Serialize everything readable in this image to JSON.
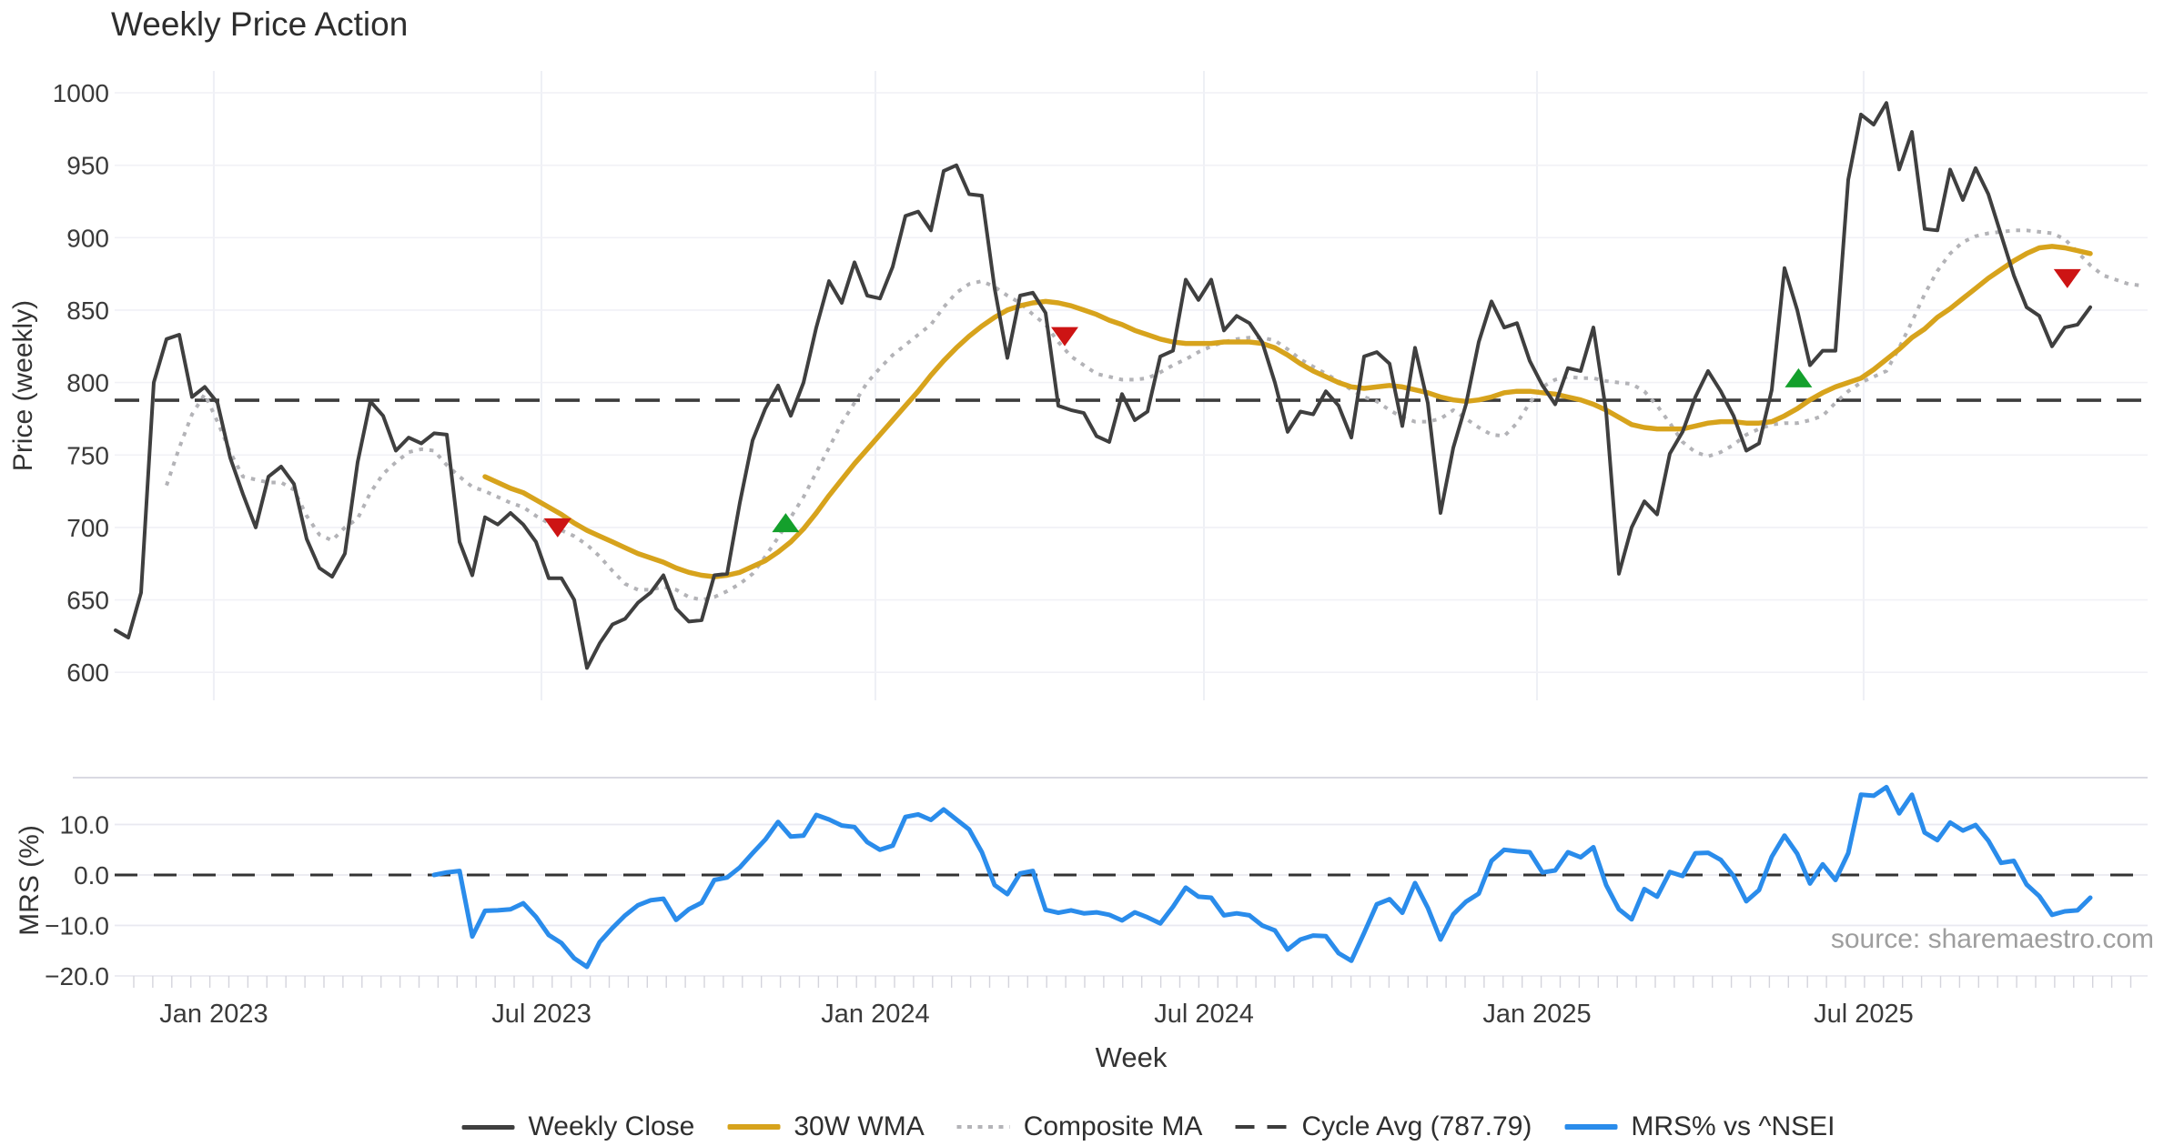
{
  "source": "source: sharemaestro.com",
  "legend": {
    "items": [
      {
        "label": "Weekly Close",
        "color": "#3f3f3f",
        "style": "solid"
      },
      {
        "label": "30W WMA",
        "color": "#d7a31c",
        "style": "solid"
      },
      {
        "label": "Composite MA",
        "color": "#b3b3b7",
        "style": "dotted"
      },
      {
        "label": "Cycle Avg (787.79)",
        "color": "#3c3c3c",
        "style": "dashed"
      },
      {
        "label": "MRS% vs ^NSEI",
        "color": "#2a8ceb",
        "style": "solid"
      }
    ]
  },
  "chart_data": {
    "type": "line",
    "title": "Weekly Price Action",
    "x_axis": {
      "label": "Week",
      "tick_labels": [
        "Jan 2023",
        "Jul 2023",
        "Jan 2024",
        "Jul 2024",
        "Jan 2025",
        "Jul 2025"
      ],
      "tick_week_positions": [
        7.71,
        33.43,
        59.64,
        85.43,
        111.57,
        137.21
      ],
      "total_weeks": 156
    },
    "panels": [
      {
        "name": "price",
        "ylabel": "Price (weekly)",
        "yticks": [
          600,
          650,
          700,
          750,
          800,
          850,
          900,
          950,
          1000
        ],
        "ytick_labels": [
          "600",
          "650",
          "700",
          "750",
          "800",
          "850",
          "900",
          "950",
          "1000"
        ],
        "ylim": [
          581,
          1015
        ],
        "cycle_avg": 787.79,
        "series": [
          {
            "name": "Weekly Close",
            "color": "#3f3f3f",
            "style": "solid",
            "width": 4,
            "start_index": 0,
            "values": [
              629,
              624,
              655,
              800,
              830,
              833,
              790,
              797,
              786,
              748,
              723,
              700,
              735,
              742,
              730,
              692,
              672,
              666,
              682,
              745,
              787,
              777,
              753,
              762,
              758,
              765,
              764,
              690,
              667,
              707,
              702,
              710,
              702,
              690,
              665,
              665,
              650,
              603,
              620,
              633,
              637,
              648,
              655,
              667,
              644,
              635,
              636,
              667,
              668,
              717,
              760,
              782,
              798,
              777,
              800,
              838,
              870,
              855,
              883,
              860,
              858,
              880,
              915,
              918,
              905,
              946,
              950,
              930,
              929,
              865,
              817,
              860,
              862,
              848,
              784,
              781,
              779,
              763,
              759,
              792,
              774,
              780,
              818,
              822,
              871,
              857,
              871,
              836,
              846,
              841,
              828,
              800,
              766,
              780,
              778,
              794,
              784,
              762,
              818,
              821,
              813,
              770,
              824,
              786,
              710,
              755,
              785,
              828,
              856,
              838,
              841,
              815,
              798,
              785,
              810,
              808,
              838,
              780,
              668,
              700,
              718,
              709,
              751,
              766,
              790,
              808,
              794,
              777,
              753,
              758,
              795,
              879,
              850,
              812,
              822,
              822,
              940,
              985,
              978,
              993,
              947,
              973,
              906,
              905,
              947,
              926,
              948,
              930,
              902,
              874,
              852,
              846,
              825,
              838,
              840,
              852
            ]
          },
          {
            "name": "30W WMA",
            "color": "#d7a31c",
            "style": "solid",
            "width": 5.5,
            "start_index": 29,
            "values": [
              735,
              731,
              727,
              724,
              719,
              714,
              709,
              703,
              698,
              694,
              690,
              686,
              682,
              679,
              676,
              672,
              669,
              667,
              666,
              667,
              669,
              673,
              677,
              683,
              690,
              699,
              710,
              722,
              733,
              744,
              754,
              764,
              774,
              784,
              794,
              805,
              815,
              824,
              832,
              839,
              845,
              850,
              853,
              855,
              856,
              855,
              853,
              850,
              847,
              843,
              840,
              836,
              833,
              830,
              828,
              827,
              827,
              827,
              828,
              828,
              828,
              827,
              824,
              819,
              813,
              808,
              804,
              800,
              797,
              796,
              797,
              798,
              797,
              795,
              793,
              790,
              788,
              787,
              788,
              790,
              793,
              794,
              794,
              793,
              792,
              790,
              788,
              785,
              781,
              776,
              771,
              769,
              768,
              768,
              768,
              770,
              772,
              773,
              773,
              772,
              772,
              773,
              777,
              782,
              788,
              793,
              797,
              800,
              803,
              809,
              816,
              823,
              831,
              837,
              845,
              851,
              858,
              865,
              872,
              878,
              884,
              889,
              893,
              894,
              893,
              891,
              889
            ]
          },
          {
            "name": "Composite MA",
            "color": "#b3b3b7",
            "style": "dotted",
            "width": 4,
            "start_index": 4,
            "values": [
              729,
              755,
              778,
              792,
              773,
              752,
              735,
              733,
              731,
              731,
              726,
              708,
              695,
              691,
              700,
              706,
              724,
              737,
              745,
              752,
              754,
              753,
              743,
              735,
              728,
              725,
              721,
              717,
              714,
              708,
              703,
              698,
              694,
              688,
              680,
              670,
              661,
              657,
              657,
              659,
              657,
              652,
              650,
              652,
              656,
              661,
              668,
              680,
              693,
              707,
              721,
              738,
              755,
              772,
              786,
              800,
              810,
              819,
              826,
              833,
              840,
              852,
              862,
              868,
              870,
              866,
              860,
              855,
              847,
              840,
              828,
              818,
              812,
              806,
              804,
              802,
              802,
              803,
              807,
              812,
              816,
              821,
              825,
              828,
              830,
              831,
              831,
              829,
              823,
              816,
              811,
              806,
              801,
              795,
              790,
              787,
              781,
              776,
              773,
              773,
              775,
              781,
              775,
              769,
              764,
              763,
              772,
              786,
              797,
              802,
              804,
              803,
              803,
              801,
              800,
              799,
              794,
              784,
              772,
              759,
              752,
              749,
              752,
              757,
              764,
              768,
              771,
              772,
              772,
              774,
              777,
              786,
              794,
              800,
              804,
              808,
              824,
              842,
              861,
              877,
              889,
              897,
              901,
              903,
              904,
              905,
              905,
              904,
              903,
              899,
              890,
              881,
              874,
              871,
              868,
              867
            ]
          }
        ],
        "markers": [
          {
            "signal": "sell",
            "shape": "triangle-down",
            "color": "#cd1414",
            "week": 34.7,
            "price": 700
          },
          {
            "signal": "buy",
            "shape": "triangle-up",
            "color": "#14a02c",
            "week": 52.6,
            "price": 703
          },
          {
            "signal": "sell",
            "shape": "triangle-down",
            "color": "#cd1414",
            "week": 74.5,
            "price": 832
          },
          {
            "signal": "buy",
            "shape": "triangle-up",
            "color": "#14a02c",
            "week": 132.1,
            "price": 803
          },
          {
            "signal": "sell",
            "shape": "triangle-down",
            "color": "#cd1414",
            "week": 153.2,
            "price": 872
          }
        ]
      },
      {
        "name": "mrs",
        "ylabel": "MRS (%)",
        "yticks": [
          10,
          0,
          -10,
          -20
        ],
        "ytick_labels": [
          "10.0",
          "0.0",
          "−10.0",
          "−20.0"
        ],
        "ylim": [
          -21.6,
          19.3
        ],
        "zero_dashed_line": 0.0,
        "series": [
          {
            "name": "MRS% vs ^NSEI",
            "color": "#2a8ceb",
            "style": "solid",
            "width": 5,
            "start_index": 25,
            "values": [
              0.0,
              0.5,
              0.8,
              -12.2,
              -7.1,
              -7.0,
              -6.8,
              -5.6,
              -8.3,
              -11.9,
              -13.5,
              -16.5,
              -18.2,
              -13.3,
              -10.5,
              -8.0,
              -6.0,
              -5.0,
              -4.7,
              -8.9,
              -6.8,
              -5.5,
              -1.0,
              -0.5,
              1.5,
              4.3,
              7.0,
              10.5,
              7.6,
              7.8,
              11.9,
              11.0,
              9.8,
              9.5,
              6.5,
              5.0,
              5.8,
              11.5,
              12.0,
              10.9,
              13.0,
              11.0,
              9.0,
              4.5,
              -2.0,
              -3.8,
              0.3,
              0.8,
              -6.9,
              -7.5,
              -7.0,
              -7.6,
              -7.4,
              -7.9,
              -9.0,
              -7.4,
              -8.4,
              -9.6,
              -6.3,
              -2.5,
              -4.3,
              -4.5,
              -8.0,
              -7.6,
              -8.0,
              -10.0,
              -11.0,
              -14.8,
              -12.8,
              -12.0,
              -12.1,
              -15.5,
              -17.0,
              -11.5,
              -5.8,
              -4.8,
              -7.5,
              -1.6,
              -6.5,
              -12.8,
              -7.8,
              -5.3,
              -3.7,
              2.8,
              5.0,
              4.7,
              4.5,
              0.5,
              0.9,
              4.5,
              3.5,
              5.5,
              -2.0,
              -6.8,
              -8.8,
              -2.8,
              -4.3,
              0.6,
              -0.2,
              4.3,
              4.4,
              3.0,
              -0.2,
              -5.2,
              -3.0,
              3.6,
              7.8,
              4.2,
              -1.7,
              2.1,
              -1.0,
              4.3,
              15.9,
              15.7,
              17.4,
              12.2,
              15.9,
              8.4,
              6.9,
              10.4,
              8.8,
              9.9,
              6.8,
              2.4,
              2.8,
              -1.9,
              -4.2,
              -7.9,
              -7.2,
              -7.0,
              -4.5
            ]
          }
        ]
      }
    ]
  }
}
